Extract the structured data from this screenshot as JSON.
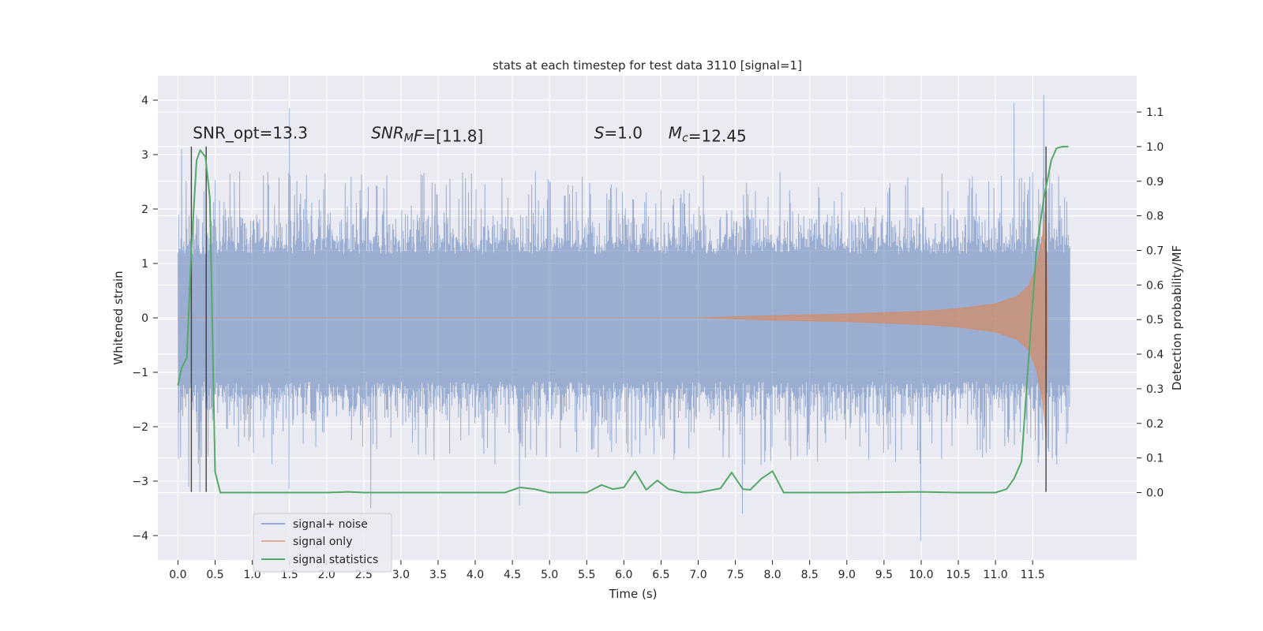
{
  "chart_data": {
    "type": "line",
    "title": "stats at each timestep for test data 3110 [signal=1]",
    "xlabel": "Time (s)",
    "ylabel": "Whitened strain",
    "y2label": "Detection probability/MF",
    "xlim": [
      -0.27,
      12.9
    ],
    "ylim": [
      -4.45,
      4.45
    ],
    "y2lim": [
      -0.195,
      1.205
    ],
    "xticks": [
      0.0,
      0.5,
      1.0,
      1.5,
      2.0,
      2.5,
      3.0,
      3.5,
      4.0,
      4.5,
      5.0,
      5.5,
      6.0,
      6.5,
      7.0,
      7.5,
      8.0,
      8.5,
      9.0,
      9.5,
      10.0,
      10.5,
      11.0,
      11.5
    ],
    "xtick_labels": [
      "0.0",
      "0.5",
      "1.0",
      "1.5",
      "2.0",
      "2.5",
      "3.0",
      "3.5",
      "4.0",
      "4.5",
      "5.0",
      "5.5",
      "6.0",
      "6.5",
      "7.0",
      "7.5",
      "8.0",
      "8.5",
      "9.0",
      "9.5",
      "10.0",
      "10.5",
      "11.0",
      "11.5"
    ],
    "yticks": [
      -4,
      -3,
      -2,
      -1,
      0,
      1,
      2,
      3,
      4
    ],
    "ytick_labels": [
      "−4",
      "−3",
      "−2",
      "−1",
      "0",
      "1",
      "2",
      "3",
      "4"
    ],
    "y2ticks": [
      0.0,
      0.1,
      0.2,
      0.3,
      0.4,
      0.5,
      0.6,
      0.7,
      0.8,
      0.9,
      1.0,
      1.1
    ],
    "y2tick_labels": [
      "0.0",
      "0.1",
      "0.2",
      "0.3",
      "0.4",
      "0.5",
      "0.6",
      "0.7",
      "0.8",
      "0.9",
      "1.0",
      "1.1"
    ],
    "grid": true,
    "legend_position": "lower-left",
    "series": [
      {
        "name": "signal+ noise",
        "axis": "left",
        "color": "#4c72b0",
        "x_range": [
          0.0,
          12.0
        ],
        "typical_abs": 1.3,
        "peaks": [
          {
            "x": 0.05,
            "y": 3.1
          },
          {
            "x": 0.15,
            "y": -3.1
          },
          {
            "x": 0.3,
            "y": -3.2
          },
          {
            "x": 1.5,
            "y": 3.85
          },
          {
            "x": 1.5,
            "y": -3.15
          },
          {
            "x": 2.6,
            "y": -3.5
          },
          {
            "x": 4.6,
            "y": -3.45
          },
          {
            "x": 7.6,
            "y": -3.6
          },
          {
            "x": 10.0,
            "y": -4.1
          },
          {
            "x": 11.25,
            "y": 3.95
          },
          {
            "x": 11.65,
            "y": 4.1
          }
        ]
      },
      {
        "name": "signal only",
        "axis": "left",
        "color": "#dd8452",
        "envelope": [
          [
            0.0,
            0.0
          ],
          [
            7.0,
            0.0
          ],
          [
            8.0,
            0.04
          ],
          [
            9.0,
            0.07
          ],
          [
            10.0,
            0.12
          ],
          [
            10.5,
            0.17
          ],
          [
            11.0,
            0.26
          ],
          [
            11.3,
            0.4
          ],
          [
            11.45,
            0.6
          ],
          [
            11.55,
            0.95
          ],
          [
            11.62,
            1.4
          ],
          [
            11.66,
            1.8
          ],
          [
            11.68,
            2.2
          ],
          [
            11.7,
            0.0
          ]
        ]
      },
      {
        "name": "signal statistics",
        "axis": "right",
        "color": "#55a868",
        "x": [
          0.0,
          0.05,
          0.12,
          0.18,
          0.25,
          0.3,
          0.37,
          0.43,
          0.5,
          0.57,
          0.65,
          1.0,
          2.0,
          2.3,
          2.5,
          3.0,
          4.0,
          4.4,
          4.6,
          4.8,
          5.0,
          5.5,
          5.7,
          5.85,
          6.0,
          6.15,
          6.3,
          6.45,
          6.6,
          6.8,
          7.0,
          7.3,
          7.45,
          7.6,
          7.7,
          7.85,
          8.0,
          8.15,
          8.3,
          8.5,
          9.0,
          10.0,
          10.5,
          11.0,
          11.15,
          11.25,
          11.35,
          11.45,
          11.55,
          11.65,
          11.75,
          11.82,
          11.9,
          11.98
        ],
        "y": [
          0.31,
          0.36,
          0.39,
          0.7,
          0.96,
          0.99,
          0.97,
          0.85,
          0.06,
          0.0,
          0.0,
          0.0,
          0.0,
          0.002,
          0.0,
          0.0,
          0.0,
          0.0,
          0.015,
          0.01,
          0.0,
          0.0,
          0.022,
          0.01,
          0.015,
          0.062,
          0.008,
          0.035,
          0.01,
          0.0,
          0.0,
          0.012,
          0.058,
          0.01,
          0.008,
          0.04,
          0.062,
          0.0,
          0.0,
          0.0,
          0.0,
          0.002,
          0.0,
          0.0,
          0.01,
          0.04,
          0.09,
          0.4,
          0.7,
          0.85,
          0.96,
          0.995,
          1.0,
          1.0
        ]
      }
    ],
    "vlines": [
      {
        "x": 0.18,
        "y_from": -3.2,
        "y_to": 3.15
      },
      {
        "x": 0.38,
        "y_from": -3.2,
        "y_to": 3.15
      },
      {
        "x": 11.68,
        "y_from": -3.2,
        "y_to": 3.15
      }
    ],
    "annotations": [
      {
        "id": "snr-opt",
        "x": 0.2,
        "y": 3.3,
        "parts": [
          {
            "t": "SNR_opt=13.3"
          }
        ]
      },
      {
        "id": "snr-mf",
        "x": 2.6,
        "y": 3.3,
        "parts": [
          {
            "t": "SNR",
            "i": true
          },
          {
            "t": "M",
            "i": true,
            "sub": true
          },
          {
            "t": "F",
            "i": true
          },
          {
            "t": "=[11.8]"
          }
        ]
      },
      {
        "id": "s-stat",
        "x": 5.6,
        "y": 3.3,
        "parts": [
          {
            "t": "S",
            "i": true
          },
          {
            "t": "=1.0"
          }
        ]
      },
      {
        "id": "mc",
        "x": 6.6,
        "y": 3.3,
        "parts": [
          {
            "t": "M",
            "i": true
          },
          {
            "t": "c",
            "i": true,
            "sub": true
          },
          {
            "t": "=12.45"
          }
        ]
      }
    ]
  }
}
